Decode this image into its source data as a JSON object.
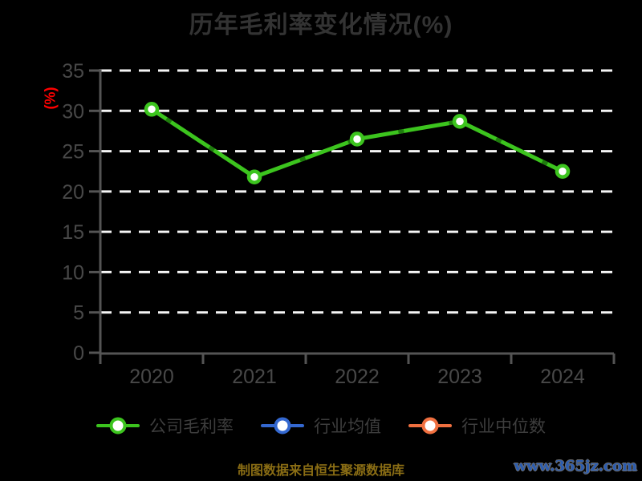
{
  "title": "历年毛利率变化情况(%)",
  "footer": {
    "source_note": "制图数据来自恒生聚源数据库",
    "watermark": "www.365jz.com"
  },
  "colors": {
    "background": "#000000",
    "title_text": "#333333",
    "axis_line": "#545454",
    "axis_label": "#484848",
    "grid_line": "#f5f5f5",
    "unit_label": "#ff0000",
    "legend_text": "#3d3d3d",
    "footer_text": "#8a6d14",
    "watermark_text": "#2b5cb0",
    "marker_fill": "#ffffff",
    "line_dash_overlay": "#1f7c0e"
  },
  "legend": [
    {
      "label": "公司毛利率",
      "color": "#3cc41e"
    },
    {
      "label": "行业均值",
      "color": "#3468d0"
    },
    {
      "label": "行业中位数",
      "color": "#f07040"
    }
  ],
  "chart_data": {
    "type": "line",
    "title": "历年毛利率变化情况(%)",
    "xlabel": "",
    "ylabel": "(%)",
    "categories": [
      "2020",
      "2021",
      "2022",
      "2023",
      "2024"
    ],
    "series": [
      {
        "name": "公司毛利率",
        "color": "#3cc41e",
        "values": [
          30.2,
          21.8,
          26.5,
          28.7,
          22.5
        ]
      },
      {
        "name": "行业均值",
        "color": "#3468d0",
        "values": []
      },
      {
        "name": "行业中位数",
        "color": "#f07040",
        "values": []
      }
    ],
    "ylim": [
      0,
      35
    ],
    "yticks": [
      0,
      5,
      10,
      15,
      20,
      25,
      30,
      35
    ],
    "grid": true,
    "grid_style": "dashed",
    "legend_position": "bottom"
  }
}
